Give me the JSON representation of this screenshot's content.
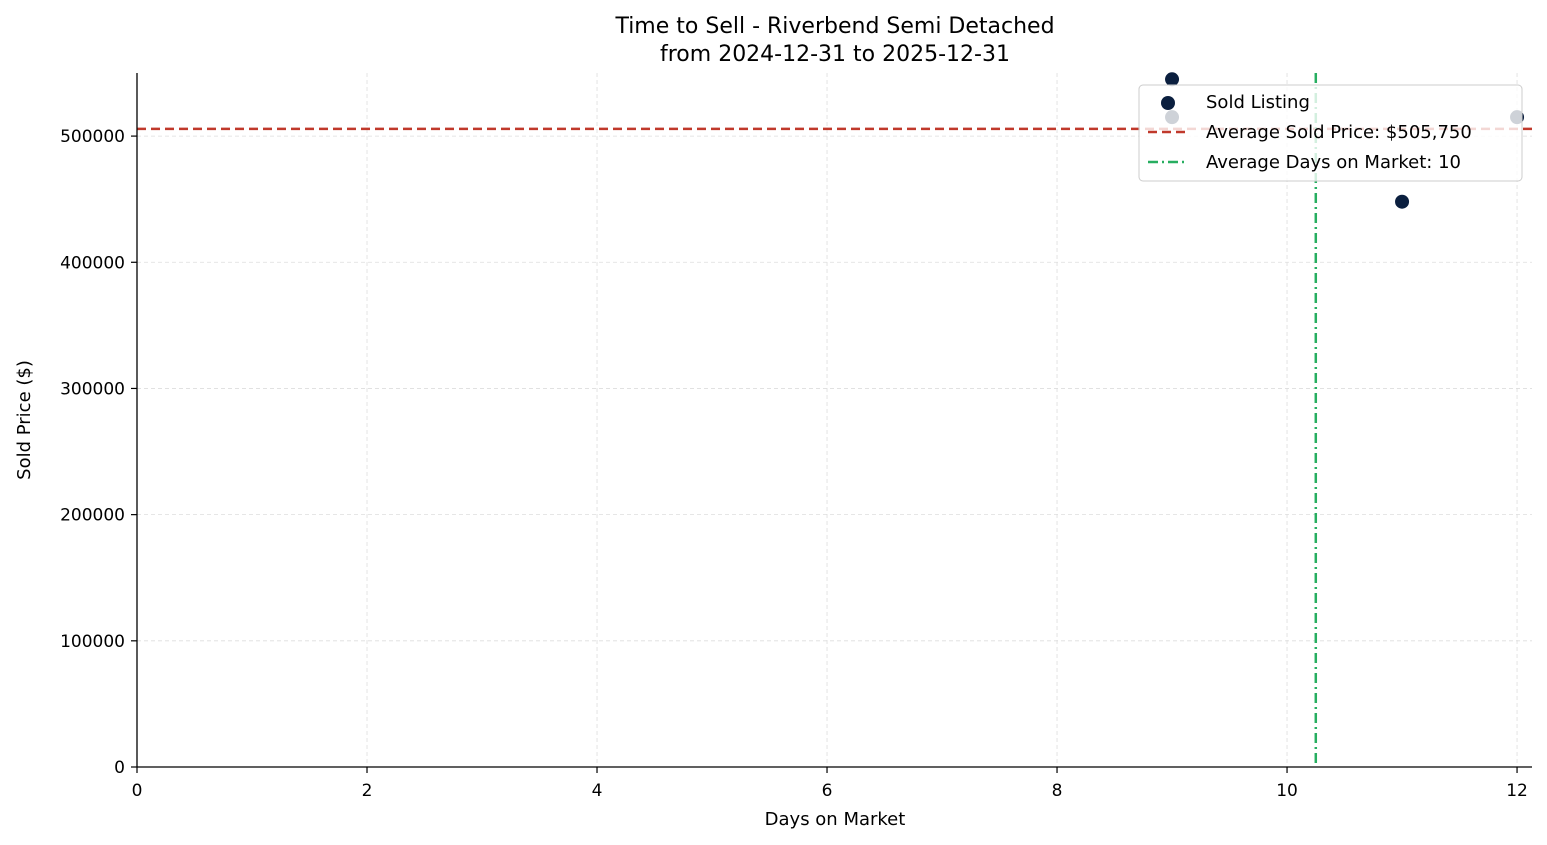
{
  "chart_data": {
    "type": "scatter",
    "title": "Time to Sell - Riverbend Semi Detached",
    "subtitle": "from 2024-12-31 to 2025-12-31",
    "xlabel": "Days on Market",
    "ylabel": "Sold Price ($)",
    "xlim": [
      0,
      12.13
    ],
    "ylim": [
      0,
      550000
    ],
    "xticks": [
      0,
      2,
      4,
      6,
      8,
      10,
      12
    ],
    "yticks": [
      0,
      100000,
      200000,
      300000,
      400000,
      500000
    ],
    "grid": true,
    "legend_position": "top-right",
    "series": [
      {
        "name": "Sold Listing",
        "color": "#0b1f3f",
        "points": [
          {
            "x": 9,
            "y": 545000
          },
          {
            "x": 9,
            "y": 515000
          },
          {
            "x": 11,
            "y": 448000
          },
          {
            "x": 12,
            "y": 515000
          }
        ]
      }
    ],
    "reference_lines": [
      {
        "orientation": "horizontal",
        "value": 505750,
        "label": "Average Sold Price: $505,750",
        "color": "#c0392b",
        "style": "dashed"
      },
      {
        "orientation": "vertical",
        "value": 10.25,
        "label": "Average Days on Market: 10",
        "color": "#27ae60",
        "style": "dashdot"
      }
    ]
  }
}
